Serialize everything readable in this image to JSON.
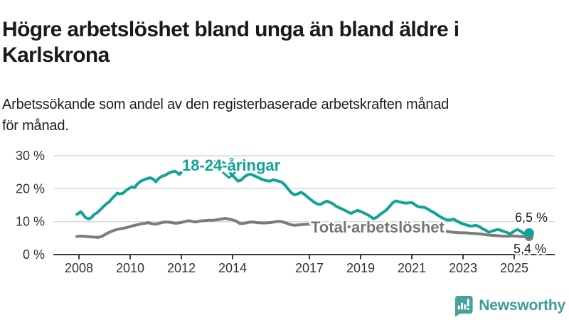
{
  "header": {
    "title_lines": [
      "Högre arbetslöshet bland unga än bland äldre i",
      "Karlskrona"
    ],
    "subtitle_lines": [
      "Arbetssökande som andel av den registerbaserade arbetskraften månad",
      "för månad."
    ]
  },
  "chart_data": {
    "type": "line",
    "title": "Högre arbetslöshet bland unga än bland äldre i Karlskrona",
    "subtitle": "Arbetssökande som andel av den registerbaserade arbetskraften månad för månad.",
    "xlabel": "",
    "ylabel": "",
    "xlim": [
      2007.0,
      2026.6
    ],
    "ylim": [
      0,
      30
    ],
    "grid": true,
    "legend_position": "inline-labels",
    "x_ticks": [
      2008,
      2010,
      2012,
      2014,
      2017,
      2019,
      2021,
      2023,
      2025
    ],
    "x_tick_labels": [
      "2008",
      "2010",
      "2012",
      "2014",
      "2017",
      "2019",
      "2021",
      "2023",
      "2025"
    ],
    "y_ticks": [
      0,
      10,
      20,
      30
    ],
    "y_tick_labels": [
      "0 %",
      "10 %",
      "20 %",
      "30 %"
    ],
    "series": [
      {
        "name": "18-24-åringar",
        "color": "#12a296",
        "end_label": "6,5 %",
        "end_value": 6.5,
        "points": [
          [
            2007.92,
            12.2
          ],
          [
            2008.0,
            12.6
          ],
          [
            2008.08,
            13.0
          ],
          [
            2008.17,
            12.1
          ],
          [
            2008.25,
            11.3
          ],
          [
            2008.38,
            10.8
          ],
          [
            2008.5,
            11.3
          ],
          [
            2008.58,
            12.1
          ],
          [
            2008.71,
            12.7
          ],
          [
            2008.83,
            13.6
          ],
          [
            2008.96,
            14.6
          ],
          [
            2009.08,
            15.5
          ],
          [
            2009.17,
            15.9
          ],
          [
            2009.29,
            17.0
          ],
          [
            2009.42,
            18.0
          ],
          [
            2009.5,
            18.7
          ],
          [
            2009.58,
            18.4
          ],
          [
            2009.71,
            18.6
          ],
          [
            2009.83,
            19.4
          ],
          [
            2009.96,
            20.1
          ],
          [
            2010.08,
            20.6
          ],
          [
            2010.17,
            20.3
          ],
          [
            2010.29,
            21.5
          ],
          [
            2010.42,
            22.3
          ],
          [
            2010.54,
            22.7
          ],
          [
            2010.67,
            23.1
          ],
          [
            2010.79,
            23.3
          ],
          [
            2010.92,
            22.8
          ],
          [
            2011.0,
            22.1
          ],
          [
            2011.13,
            23.2
          ],
          [
            2011.25,
            23.8
          ],
          [
            2011.38,
            24.1
          ],
          [
            2011.5,
            24.7
          ],
          [
            2011.63,
            25.1
          ],
          [
            2011.75,
            25.3
          ],
          [
            2011.83,
            24.9
          ],
          [
            2011.92,
            24.3
          ],
          [
            2012.04,
            25.3
          ],
          [
            2012.17,
            26.1
          ],
          [
            2012.29,
            26.5
          ],
          [
            2012.42,
            26.3
          ],
          [
            2012.5,
            25.6
          ],
          [
            2012.63,
            25.9
          ],
          [
            2012.75,
            26.6
          ],
          [
            2012.88,
            27.2
          ],
          [
            2013.0,
            27.6
          ],
          [
            2013.08,
            27.2
          ],
          [
            2013.21,
            27.7
          ],
          [
            2013.33,
            28.2
          ],
          [
            2013.46,
            28.5
          ],
          [
            2013.58,
            28.2
          ],
          [
            2013.71,
            27.4
          ],
          [
            2013.83,
            25.9
          ],
          [
            2013.96,
            24.2
          ],
          [
            2014.08,
            23.4
          ],
          [
            2014.21,
            22.3
          ],
          [
            2014.33,
            22.6
          ],
          [
            2014.46,
            23.6
          ],
          [
            2014.58,
            24.2
          ],
          [
            2014.71,
            24.4
          ],
          [
            2014.83,
            24.0
          ],
          [
            2014.96,
            23.5
          ],
          [
            2015.13,
            22.9
          ],
          [
            2015.29,
            22.5
          ],
          [
            2015.46,
            22.3
          ],
          [
            2015.58,
            22.7
          ],
          [
            2015.75,
            22.4
          ],
          [
            2015.92,
            22.0
          ],
          [
            2016.04,
            21.2
          ],
          [
            2016.17,
            19.9
          ],
          [
            2016.29,
            18.8
          ],
          [
            2016.42,
            18.1
          ],
          [
            2016.54,
            18.4
          ],
          [
            2016.67,
            18.9
          ],
          [
            2016.79,
            18.4
          ],
          [
            2016.92,
            17.5
          ],
          [
            2017.04,
            16.8
          ],
          [
            2017.17,
            16.0
          ],
          [
            2017.29,
            15.4
          ],
          [
            2017.42,
            15.2
          ],
          [
            2017.54,
            15.7
          ],
          [
            2017.67,
            16.2
          ],
          [
            2017.79,
            15.9
          ],
          [
            2017.92,
            15.4
          ],
          [
            2018.04,
            14.7
          ],
          [
            2018.17,
            14.2
          ],
          [
            2018.29,
            13.8
          ],
          [
            2018.42,
            13.3
          ],
          [
            2018.54,
            12.8
          ],
          [
            2018.63,
            12.5
          ],
          [
            2018.75,
            13.0
          ],
          [
            2018.88,
            13.4
          ],
          [
            2019.0,
            13.1
          ],
          [
            2019.13,
            12.6
          ],
          [
            2019.25,
            12.2
          ],
          [
            2019.38,
            11.6
          ],
          [
            2019.5,
            10.9
          ],
          [
            2019.63,
            11.3
          ],
          [
            2019.75,
            12.1
          ],
          [
            2019.88,
            12.8
          ],
          [
            2020.0,
            13.5
          ],
          [
            2020.13,
            14.6
          ],
          [
            2020.25,
            15.7
          ],
          [
            2020.38,
            16.3
          ],
          [
            2020.5,
            16.0
          ],
          [
            2020.63,
            15.8
          ],
          [
            2020.75,
            15.6
          ],
          [
            2020.88,
            15.7
          ],
          [
            2021.0,
            15.8
          ],
          [
            2021.13,
            15.1
          ],
          [
            2021.25,
            14.5
          ],
          [
            2021.38,
            14.4
          ],
          [
            2021.5,
            14.3
          ],
          [
            2021.63,
            13.8
          ],
          [
            2021.75,
            13.2
          ],
          [
            2021.88,
            12.7
          ],
          [
            2022.0,
            12.0
          ],
          [
            2022.13,
            11.4
          ],
          [
            2022.25,
            10.9
          ],
          [
            2022.38,
            10.5
          ],
          [
            2022.5,
            10.5
          ],
          [
            2022.63,
            10.8
          ],
          [
            2022.75,
            10.2
          ],
          [
            2022.88,
            9.7
          ],
          [
            2023.0,
            9.3
          ],
          [
            2023.13,
            9.0
          ],
          [
            2023.25,
            8.7
          ],
          [
            2023.38,
            8.7
          ],
          [
            2023.5,
            8.9
          ],
          [
            2023.63,
            8.5
          ],
          [
            2023.75,
            7.9
          ],
          [
            2023.88,
            7.4
          ],
          [
            2024.0,
            6.8
          ],
          [
            2024.13,
            7.1
          ],
          [
            2024.25,
            7.4
          ],
          [
            2024.38,
            7.6
          ],
          [
            2024.5,
            7.3
          ],
          [
            2024.63,
            6.9
          ],
          [
            2024.75,
            6.6
          ],
          [
            2024.83,
            6.3
          ],
          [
            2024.92,
            6.7
          ],
          [
            2025.04,
            7.3
          ],
          [
            2025.13,
            7.6
          ],
          [
            2025.25,
            7.1
          ],
          [
            2025.33,
            6.6
          ],
          [
            2025.42,
            6.3
          ],
          [
            2025.5,
            6.4
          ],
          [
            2025.58,
            6.5
          ]
        ]
      },
      {
        "name": "Total arbetslöshet",
        "color": "#7c7c7c",
        "end_label": "5,4 %",
        "end_value": 5.4,
        "points": [
          [
            2007.92,
            5.5
          ],
          [
            2008.08,
            5.6
          ],
          [
            2008.25,
            5.5
          ],
          [
            2008.42,
            5.4
          ],
          [
            2008.58,
            5.3
          ],
          [
            2008.75,
            5.2
          ],
          [
            2008.92,
            5.6
          ],
          [
            2009.04,
            6.2
          ],
          [
            2009.17,
            6.7
          ],
          [
            2009.29,
            7.1
          ],
          [
            2009.42,
            7.5
          ],
          [
            2009.58,
            7.8
          ],
          [
            2009.75,
            8.0
          ],
          [
            2009.92,
            8.3
          ],
          [
            2010.08,
            8.7
          ],
          [
            2010.25,
            9.0
          ],
          [
            2010.42,
            9.3
          ],
          [
            2010.58,
            9.5
          ],
          [
            2010.71,
            9.7
          ],
          [
            2010.83,
            9.4
          ],
          [
            2010.96,
            9.2
          ],
          [
            2011.13,
            9.5
          ],
          [
            2011.29,
            9.8
          ],
          [
            2011.46,
            9.9
          ],
          [
            2011.63,
            9.7
          ],
          [
            2011.79,
            9.5
          ],
          [
            2011.96,
            9.7
          ],
          [
            2012.13,
            10.0
          ],
          [
            2012.29,
            10.3
          ],
          [
            2012.46,
            10.0
          ],
          [
            2012.58,
            9.9
          ],
          [
            2012.75,
            10.2
          ],
          [
            2012.92,
            10.3
          ],
          [
            2013.08,
            10.4
          ],
          [
            2013.25,
            10.4
          ],
          [
            2013.42,
            10.6
          ],
          [
            2013.58,
            10.8
          ],
          [
            2013.71,
            11.0
          ],
          [
            2013.83,
            10.8
          ],
          [
            2013.96,
            10.6
          ],
          [
            2014.13,
            10.2
          ],
          [
            2014.29,
            9.4
          ],
          [
            2014.46,
            9.5
          ],
          [
            2014.63,
            9.8
          ],
          [
            2014.79,
            9.9
          ],
          [
            2014.96,
            9.7
          ],
          [
            2015.13,
            9.6
          ],
          [
            2015.29,
            9.6
          ],
          [
            2015.46,
            9.7
          ],
          [
            2015.63,
            9.9
          ],
          [
            2015.79,
            10.1
          ],
          [
            2015.92,
            10.0
          ],
          [
            2016.08,
            9.6
          ],
          [
            2016.25,
            9.1
          ],
          [
            2016.42,
            8.9
          ],
          [
            2016.58,
            9.0
          ],
          [
            2016.75,
            9.1
          ],
          [
            2016.92,
            9.2
          ],
          [
            2017.08,
            9.3
          ],
          [
            2017.25,
            9.1
          ],
          [
            2017.42,
            9.0
          ],
          [
            2017.58,
            9.1
          ],
          [
            2017.75,
            9.0
          ],
          [
            2017.92,
            8.9
          ],
          [
            2018.17,
            8.7
          ],
          [
            2018.42,
            8.5
          ],
          [
            2018.67,
            8.4
          ],
          [
            2018.92,
            8.3
          ],
          [
            2019.17,
            8.2
          ],
          [
            2019.42,
            8.1
          ],
          [
            2019.67,
            8.1
          ],
          [
            2019.92,
            8.2
          ],
          [
            2020.17,
            8.6
          ],
          [
            2020.33,
            8.9
          ],
          [
            2020.5,
            9.0
          ],
          [
            2020.67,
            8.9
          ],
          [
            2020.92,
            8.7
          ],
          [
            2021.17,
            8.5
          ],
          [
            2021.42,
            8.2
          ],
          [
            2021.67,
            7.9
          ],
          [
            2021.92,
            7.5
          ],
          [
            2022.17,
            7.2
          ],
          [
            2022.42,
            7.0
          ],
          [
            2022.58,
            6.8
          ],
          [
            2022.75,
            6.7
          ],
          [
            2022.92,
            6.6
          ],
          [
            2023.08,
            6.6
          ],
          [
            2023.25,
            6.5
          ],
          [
            2023.42,
            6.4
          ],
          [
            2023.58,
            6.3
          ],
          [
            2023.75,
            6.2
          ],
          [
            2023.92,
            6.0
          ],
          [
            2024.08,
            5.9
          ],
          [
            2024.25,
            5.8
          ],
          [
            2024.42,
            5.7
          ],
          [
            2024.58,
            5.6
          ],
          [
            2024.75,
            5.6
          ],
          [
            2024.92,
            5.7
          ],
          [
            2025.08,
            5.6
          ],
          [
            2025.25,
            5.5
          ],
          [
            2025.42,
            5.4
          ],
          [
            2025.58,
            5.4
          ]
        ]
      }
    ],
    "colors": {
      "youth_line": "#12a296",
      "total_line": "#7c7c7c",
      "total_label": "#757575",
      "axis": "#3d3d3d",
      "grid": "#d9d9d9",
      "text": "#1a1a1a"
    }
  },
  "logo": {
    "text": "Newsworthy",
    "icon": "newsworthy-chart-bubble-icon",
    "color": "#3e9c97"
  }
}
